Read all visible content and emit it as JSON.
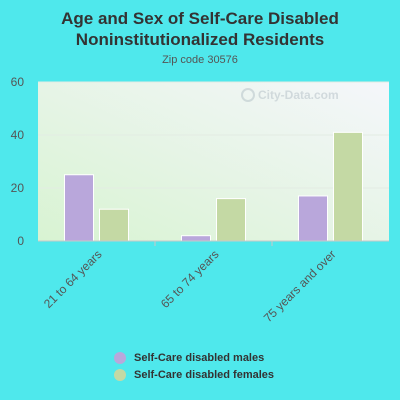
{
  "chart_data": {
    "type": "bar",
    "title": "Age and Sex of Self-Care Disabled Noninstitutionalized Residents",
    "subtitle": "Zip code 30576",
    "categories": [
      "21 to 64 years",
      "65 to 74 years",
      "75 years and over"
    ],
    "series": [
      {
        "name": "Self-Care disabled males",
        "color": "#b9a7db",
        "values": [
          25,
          2,
          17
        ]
      },
      {
        "name": "Self-Care disabled females",
        "color": "#c4d9a4",
        "values": [
          12,
          16,
          41
        ]
      }
    ],
    "ylim": [
      0,
      60
    ],
    "yticks": [
      "0",
      "20",
      "40",
      "60"
    ],
    "grid": true,
    "legend_position": "bottom",
    "watermark": "City-Data.com"
  }
}
